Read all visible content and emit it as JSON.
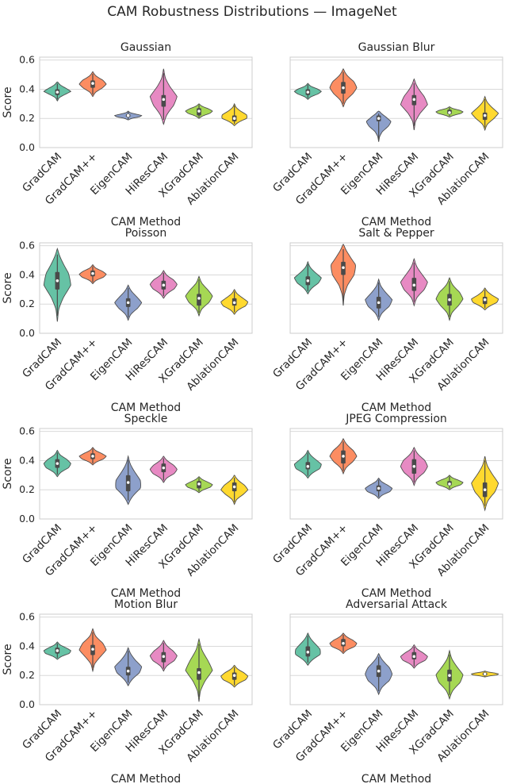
{
  "figure_title": "CAM Robustness Distributions — ImageNet",
  "colors": {
    "GradCAM": "#66c2a5",
    "GradCAM++": "#fc8d62",
    "EigenCAM": "#8da0cb",
    "HiResCAM": "#e78ac3",
    "XGradCAM": "#a6d854",
    "AblationCAM": "#ffd92f",
    "box": "#4a4a4a",
    "median": "#ffffff",
    "grid": "#d9d9d9",
    "frame": "#cccccc"
  },
  "chart_data": [
    {
      "type": "violin",
      "title": "Gaussian",
      "xlabel": "CAM Method",
      "ylabel": "Score",
      "categories": [
        "GradCAM",
        "GradCAM++",
        "EigenCAM",
        "HiResCAM",
        "XGradCAM",
        "AblationCAM"
      ],
      "ylim": [
        0,
        0.62
      ],
      "yticks": [
        "0.0",
        "0.2",
        "0.4",
        "0.6"
      ],
      "ytick_values": [
        0,
        0.2,
        0.4,
        0.6
      ],
      "series": [
        {
          "name": "GradCAM",
          "min": 0.32,
          "q1": 0.36,
          "median": 0.38,
          "q3": 0.4,
          "max": 0.45,
          "density": [
            0.05,
            0.2,
            0.6,
            1.0,
            0.7,
            0.35,
            0.1
          ]
        },
        {
          "name": "GradCAM++",
          "min": 0.35,
          "q1": 0.41,
          "median": 0.44,
          "q3": 0.46,
          "max": 0.52,
          "density": [
            0.05,
            0.3,
            0.75,
            1.0,
            0.8,
            0.35,
            0.05
          ]
        },
        {
          "name": "EigenCAM",
          "min": 0.19,
          "q1": 0.21,
          "median": 0.22,
          "q3": 0.23,
          "max": 0.25,
          "density": [
            0.1,
            0.4,
            0.9,
            1.0,
            0.6,
            0.2,
            0.05
          ]
        },
        {
          "name": "HiResCAM",
          "min": 0.16,
          "q1": 0.28,
          "median": 0.33,
          "q3": 0.36,
          "max": 0.54,
          "density": [
            0.05,
            0.35,
            0.8,
            1.0,
            0.55,
            0.2,
            0.03
          ]
        },
        {
          "name": "XGradCAM",
          "min": 0.2,
          "q1": 0.22,
          "median": 0.25,
          "q3": 0.27,
          "max": 0.3,
          "density": [
            0.05,
            0.4,
            0.85,
            1.0,
            0.75,
            0.35,
            0.05
          ]
        },
        {
          "name": "AblationCAM",
          "min": 0.15,
          "q1": 0.18,
          "median": 0.2,
          "q3": 0.22,
          "max": 0.3,
          "density": [
            0.05,
            0.5,
            1.0,
            0.9,
            0.5,
            0.2,
            0.03
          ]
        }
      ]
    },
    {
      "type": "violin",
      "title": "Gaussian Blur",
      "xlabel": "CAM Method",
      "ylabel": "",
      "categories": [
        "GradCAM",
        "GradCAM++",
        "EigenCAM",
        "HiResCAM",
        "XGradCAM",
        "AblationCAM"
      ],
      "ylim": [
        0,
        0.62
      ],
      "yticks": [],
      "ytick_values": [
        0,
        0.2,
        0.4,
        0.6
      ],
      "series": [
        {
          "name": "GradCAM",
          "min": 0.33,
          "q1": 0.36,
          "median": 0.38,
          "q3": 0.4,
          "max": 0.44,
          "density": [
            0.05,
            0.35,
            0.8,
            1.0,
            0.75,
            0.3,
            0.05
          ]
        },
        {
          "name": "GradCAM++",
          "min": 0.28,
          "q1": 0.37,
          "median": 0.41,
          "q3": 0.45,
          "max": 0.54,
          "density": [
            0.05,
            0.3,
            0.75,
            1.0,
            0.85,
            0.4,
            0.05
          ]
        },
        {
          "name": "EigenCAM",
          "min": 0.04,
          "q1": 0.18,
          "median": 0.2,
          "q3": 0.22,
          "max": 0.25,
          "density": [
            0.02,
            0.1,
            0.3,
            0.7,
            1.0,
            0.7,
            0.15
          ]
        },
        {
          "name": "HiResCAM",
          "min": 0.12,
          "q1": 0.29,
          "median": 0.33,
          "q3": 0.36,
          "max": 0.47,
          "density": [
            0.03,
            0.15,
            0.5,
            1.0,
            0.8,
            0.4,
            0.05
          ]
        },
        {
          "name": "XGradCAM",
          "min": 0.21,
          "q1": 0.23,
          "median": 0.24,
          "q3": 0.26,
          "max": 0.28,
          "density": [
            0.1,
            0.5,
            0.9,
            1.0,
            0.8,
            0.35,
            0.05
          ]
        },
        {
          "name": "AblationCAM",
          "min": 0.12,
          "q1": 0.19,
          "median": 0.22,
          "q3": 0.24,
          "max": 0.35,
          "density": [
            0.03,
            0.25,
            0.7,
            1.0,
            0.6,
            0.25,
            0.03
          ]
        }
      ]
    },
    {
      "type": "violin",
      "title": "Poisson",
      "xlabel": "CAM Method",
      "ylabel": "Score",
      "categories": [
        "GradCAM",
        "GradCAM++",
        "EigenCAM",
        "HiResCAM",
        "XGradCAM",
        "AblationCAM"
      ],
      "ylim": [
        0,
        0.62
      ],
      "yticks": [
        "0.0",
        "0.2",
        "0.4",
        "0.6"
      ],
      "ytick_values": [
        0,
        0.2,
        0.4,
        0.6
      ],
      "series": [
        {
          "name": "GradCAM",
          "min": 0.08,
          "q1": 0.3,
          "median": 0.36,
          "q3": 0.42,
          "max": 0.58,
          "density": [
            0.03,
            0.15,
            0.5,
            1.0,
            0.9,
            0.5,
            0.05
          ]
        },
        {
          "name": "GradCAM++",
          "min": 0.34,
          "q1": 0.39,
          "median": 0.41,
          "q3": 0.43,
          "max": 0.47,
          "density": [
            0.05,
            0.35,
            0.85,
            1.0,
            0.75,
            0.3,
            0.05
          ]
        },
        {
          "name": "EigenCAM",
          "min": 0.09,
          "q1": 0.18,
          "median": 0.21,
          "q3": 0.24,
          "max": 0.33,
          "density": [
            0.03,
            0.3,
            0.75,
            1.0,
            0.7,
            0.35,
            0.05
          ]
        },
        {
          "name": "HiResCAM",
          "min": 0.24,
          "q1": 0.3,
          "median": 0.33,
          "q3": 0.36,
          "max": 0.43,
          "density": [
            0.05,
            0.4,
            0.85,
            1.0,
            0.8,
            0.35,
            0.05
          ]
        },
        {
          "name": "XGradCAM",
          "min": 0.12,
          "q1": 0.19,
          "median": 0.24,
          "q3": 0.27,
          "max": 0.39,
          "density": [
            0.03,
            0.3,
            0.8,
            1.0,
            0.7,
            0.3,
            0.05
          ]
        },
        {
          "name": "AblationCAM",
          "min": 0.13,
          "q1": 0.19,
          "median": 0.21,
          "q3": 0.24,
          "max": 0.3,
          "density": [
            0.05,
            0.4,
            0.9,
            1.0,
            0.65,
            0.3,
            0.05
          ]
        }
      ]
    },
    {
      "type": "violin",
      "title": "Salt & Pepper",
      "xlabel": "CAM Method",
      "ylabel": "",
      "categories": [
        "GradCAM",
        "GradCAM++",
        "EigenCAM",
        "HiResCAM",
        "XGradCAM",
        "AblationCAM"
      ],
      "ylim": [
        0,
        0.62
      ],
      "yticks": [],
      "ytick_values": [
        0,
        0.2,
        0.4,
        0.6
      ],
      "series": [
        {
          "name": "GradCAM",
          "min": 0.27,
          "q1": 0.33,
          "median": 0.36,
          "q3": 0.39,
          "max": 0.49,
          "density": [
            0.05,
            0.4,
            0.85,
            1.0,
            0.6,
            0.25,
            0.03
          ]
        },
        {
          "name": "GradCAM++",
          "min": 0.19,
          "q1": 0.4,
          "median": 0.45,
          "q3": 0.49,
          "max": 0.61,
          "density": [
            0.02,
            0.1,
            0.35,
            0.8,
            1.0,
            0.6,
            0.1
          ]
        },
        {
          "name": "EigenCAM",
          "min": 0.09,
          "q1": 0.17,
          "median": 0.21,
          "q3": 0.25,
          "max": 0.37,
          "density": [
            0.03,
            0.35,
            0.85,
            1.0,
            0.6,
            0.25,
            0.03
          ]
        },
        {
          "name": "HiResCAM",
          "min": 0.19,
          "q1": 0.29,
          "median": 0.33,
          "q3": 0.38,
          "max": 0.51,
          "density": [
            0.03,
            0.3,
            0.8,
            1.0,
            0.65,
            0.3,
            0.05
          ]
        },
        {
          "name": "XGradCAM",
          "min": 0.09,
          "q1": 0.19,
          "median": 0.23,
          "q3": 0.27,
          "max": 0.38,
          "density": [
            0.03,
            0.25,
            0.7,
            1.0,
            0.8,
            0.35,
            0.05
          ]
        },
        {
          "name": "AblationCAM",
          "min": 0.16,
          "q1": 0.2,
          "median": 0.23,
          "q3": 0.25,
          "max": 0.31,
          "density": [
            0.05,
            0.5,
            0.95,
            1.0,
            0.6,
            0.3,
            0.05
          ]
        }
      ]
    },
    {
      "type": "violin",
      "title": "Speckle",
      "xlabel": "CAM Method",
      "ylabel": "Score",
      "categories": [
        "GradCAM",
        "GradCAM++",
        "EigenCAM",
        "HiResCAM",
        "XGradCAM",
        "AblationCAM"
      ],
      "ylim": [
        0,
        0.62
      ],
      "yticks": [
        "0.0",
        "0.2",
        "0.4",
        "0.6"
      ],
      "ytick_values": [
        0,
        0.2,
        0.4,
        0.6
      ],
      "series": [
        {
          "name": "GradCAM",
          "min": 0.29,
          "q1": 0.35,
          "median": 0.38,
          "q3": 0.41,
          "max": 0.47,
          "density": [
            0.05,
            0.4,
            0.9,
            1.0,
            0.75,
            0.3,
            0.05
          ]
        },
        {
          "name": "GradCAM++",
          "min": 0.37,
          "q1": 0.41,
          "median": 0.43,
          "q3": 0.45,
          "max": 0.49,
          "density": [
            0.05,
            0.4,
            0.85,
            1.0,
            0.7,
            0.3,
            0.05
          ]
        },
        {
          "name": "EigenCAM",
          "min": 0.1,
          "q1": 0.19,
          "median": 0.25,
          "q3": 0.3,
          "max": 0.43,
          "density": [
            0.05,
            0.5,
            1.0,
            0.9,
            0.55,
            0.25,
            0.03
          ]
        },
        {
          "name": "HiResCAM",
          "min": 0.25,
          "q1": 0.32,
          "median": 0.35,
          "q3": 0.38,
          "max": 0.43,
          "density": [
            0.05,
            0.35,
            0.85,
            1.0,
            0.8,
            0.4,
            0.05
          ]
        },
        {
          "name": "XGradCAM",
          "min": 0.18,
          "q1": 0.21,
          "median": 0.24,
          "q3": 0.26,
          "max": 0.29,
          "density": [
            0.05,
            0.45,
            0.9,
            1.0,
            0.7,
            0.35,
            0.05
          ]
        },
        {
          "name": "AblationCAM",
          "min": 0.1,
          "q1": 0.19,
          "median": 0.22,
          "q3": 0.25,
          "max": 0.3,
          "density": [
            0.03,
            0.25,
            0.7,
            1.0,
            0.8,
            0.4,
            0.05
          ]
        }
      ]
    },
    {
      "type": "violin",
      "title": "JPEG Compression",
      "xlabel": "CAM Method",
      "ylabel": "",
      "categories": [
        "GradCAM",
        "GradCAM++",
        "EigenCAM",
        "HiResCAM",
        "XGradCAM",
        "AblationCAM"
      ],
      "ylim": [
        0,
        0.62
      ],
      "yticks": [],
      "ytick_values": [
        0,
        0.2,
        0.4,
        0.6
      ],
      "series": [
        {
          "name": "GradCAM",
          "min": 0.28,
          "q1": 0.34,
          "median": 0.36,
          "q3": 0.39,
          "max": 0.47,
          "density": [
            0.05,
            0.45,
            0.95,
            1.0,
            0.65,
            0.3,
            0.05
          ]
        },
        {
          "name": "GradCAM++",
          "min": 0.31,
          "q1": 0.38,
          "median": 0.43,
          "q3": 0.47,
          "max": 0.55,
          "density": [
            0.03,
            0.3,
            0.75,
            1.0,
            0.8,
            0.4,
            0.05
          ]
        },
        {
          "name": "EigenCAM",
          "min": 0.14,
          "q1": 0.19,
          "median": 0.21,
          "q3": 0.23,
          "max": 0.28,
          "density": [
            0.05,
            0.4,
            0.9,
            1.0,
            0.7,
            0.3,
            0.05
          ]
        },
        {
          "name": "HiResCAM",
          "min": 0.23,
          "q1": 0.31,
          "median": 0.36,
          "q3": 0.41,
          "max": 0.49,
          "density": [
            0.03,
            0.3,
            0.8,
            1.0,
            0.85,
            0.4,
            0.05
          ]
        },
        {
          "name": "XGradCAM",
          "min": 0.2,
          "q1": 0.23,
          "median": 0.24,
          "q3": 0.26,
          "max": 0.3,
          "density": [
            0.05,
            0.45,
            0.9,
            1.0,
            0.7,
            0.3,
            0.05
          ]
        },
        {
          "name": "AblationCAM",
          "min": 0.06,
          "q1": 0.15,
          "median": 0.2,
          "q3": 0.25,
          "max": 0.43,
          "density": [
            0.03,
            0.3,
            0.8,
            1.0,
            0.6,
            0.25,
            0.03
          ]
        }
      ]
    },
    {
      "type": "violin",
      "title": "Motion Blur",
      "xlabel": "CAM Method",
      "ylabel": "Score",
      "categories": [
        "GradCAM",
        "GradCAM++",
        "EigenCAM",
        "HiResCAM",
        "XGradCAM",
        "AblationCAM"
      ],
      "ylim": [
        0,
        0.62
      ],
      "yticks": [
        "0.0",
        "0.2",
        "0.4",
        "0.6"
      ],
      "ytick_values": [
        0,
        0.2,
        0.4,
        0.6
      ],
      "series": [
        {
          "name": "GradCAM",
          "min": 0.31,
          "q1": 0.35,
          "median": 0.37,
          "q3": 0.39,
          "max": 0.43,
          "density": [
            0.05,
            0.45,
            0.95,
            1.0,
            0.7,
            0.3,
            0.05
          ]
        },
        {
          "name": "GradCAM++",
          "min": 0.23,
          "q1": 0.34,
          "median": 0.38,
          "q3": 0.41,
          "max": 0.52,
          "density": [
            0.03,
            0.2,
            0.6,
            1.0,
            0.8,
            0.3,
            0.05
          ]
        },
        {
          "name": "EigenCAM",
          "min": 0.13,
          "q1": 0.2,
          "median": 0.23,
          "q3": 0.26,
          "max": 0.39,
          "density": [
            0.05,
            0.45,
            0.9,
            1.0,
            0.6,
            0.3,
            0.05
          ]
        },
        {
          "name": "HiResCAM",
          "min": 0.23,
          "q1": 0.29,
          "median": 0.33,
          "q3": 0.36,
          "max": 0.44,
          "density": [
            0.03,
            0.35,
            0.85,
            1.0,
            0.75,
            0.35,
            0.05
          ]
        },
        {
          "name": "XGradCAM",
          "min": 0.02,
          "q1": 0.17,
          "median": 0.22,
          "q3": 0.25,
          "max": 0.45,
          "density": [
            0.02,
            0.15,
            0.5,
            1.0,
            0.7,
            0.3,
            0.05
          ]
        },
        {
          "name": "AblationCAM",
          "min": 0.12,
          "q1": 0.17,
          "median": 0.2,
          "q3": 0.22,
          "max": 0.27,
          "density": [
            0.05,
            0.45,
            0.9,
            1.0,
            0.75,
            0.35,
            0.05
          ]
        }
      ]
    },
    {
      "type": "violin",
      "title": "Adversarial Attack",
      "xlabel": "CAM Method",
      "ylabel": "",
      "categories": [
        "GradCAM",
        "GradCAM++",
        "EigenCAM",
        "HiResCAM",
        "XGradCAM",
        "AblationCAM"
      ],
      "ylim": [
        0,
        0.62
      ],
      "yticks": [],
      "ytick_values": [
        0,
        0.2,
        0.4,
        0.6
      ],
      "series": [
        {
          "name": "GradCAM",
          "min": 0.27,
          "q1": 0.33,
          "median": 0.36,
          "q3": 0.4,
          "max": 0.49,
          "density": [
            0.05,
            0.5,
            1.0,
            0.9,
            0.6,
            0.3,
            0.05
          ]
        },
        {
          "name": "GradCAM++",
          "min": 0.35,
          "q1": 0.4,
          "median": 0.42,
          "q3": 0.45,
          "max": 0.49,
          "density": [
            0.05,
            0.4,
            0.9,
            1.0,
            0.75,
            0.35,
            0.05
          ]
        },
        {
          "name": "EigenCAM",
          "min": 0.07,
          "q1": 0.19,
          "median": 0.23,
          "q3": 0.27,
          "max": 0.35,
          "density": [
            0.03,
            0.35,
            0.85,
            1.0,
            0.85,
            0.45,
            0.05
          ]
        },
        {
          "name": "HiResCAM",
          "min": 0.25,
          "q1": 0.31,
          "median": 0.33,
          "q3": 0.36,
          "max": 0.41,
          "density": [
            0.05,
            0.4,
            0.9,
            1.0,
            0.7,
            0.3,
            0.05
          ]
        },
        {
          "name": "XGradCAM",
          "min": 0.04,
          "q1": 0.16,
          "median": 0.2,
          "q3": 0.24,
          "max": 0.37,
          "density": [
            0.03,
            0.35,
            0.85,
            1.0,
            0.6,
            0.25,
            0.03
          ]
        },
        {
          "name": "AblationCAM",
          "min": 0.19,
          "q1": 0.2,
          "median": 0.21,
          "q3": 0.22,
          "max": 0.23,
          "density": [
            0.1,
            0.5,
            0.95,
            1.0,
            0.8,
            0.4,
            0.1
          ]
        }
      ]
    }
  ]
}
